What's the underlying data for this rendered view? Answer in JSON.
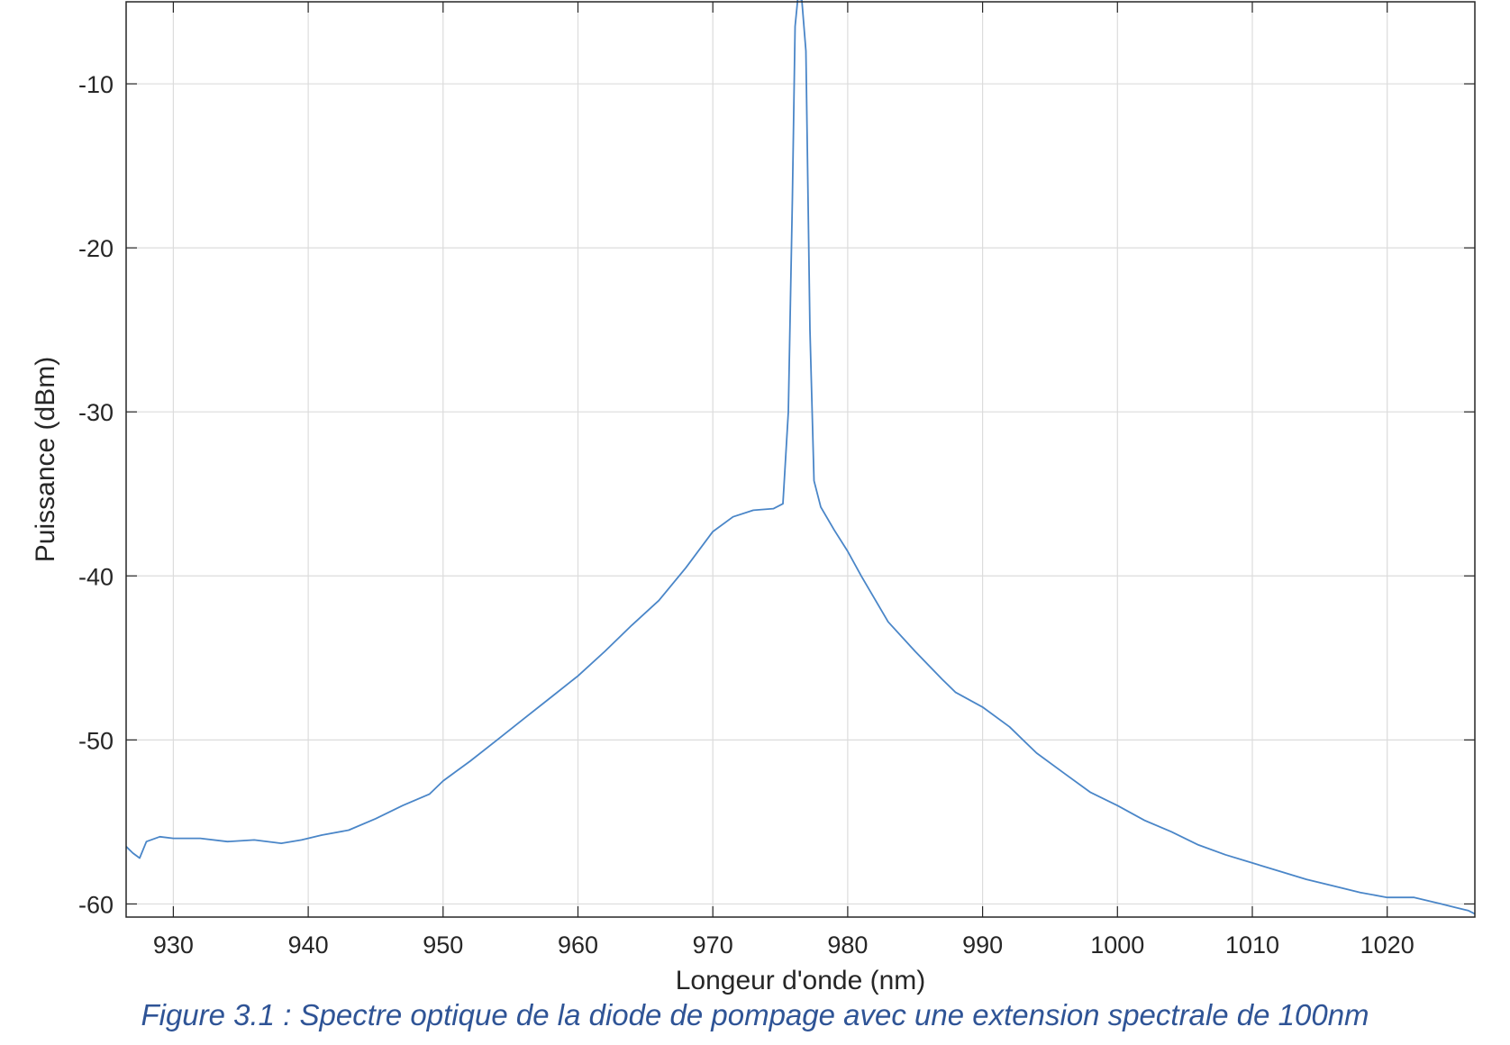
{
  "chart_data": {
    "type": "line",
    "title": "",
    "xlabel": "Longeur d'onde (nm)",
    "ylabel": "Puissance (dBm)",
    "xlim": [
      926.5,
      1026.5
    ],
    "ylim": [
      -60.8,
      -5
    ],
    "grid": true,
    "line_color": "#4a86c8",
    "x_ticks": [
      {
        "value": 930,
        "label": "930"
      },
      {
        "value": 940,
        "label": "940"
      },
      {
        "value": 950,
        "label": "950"
      },
      {
        "value": 960,
        "label": "960"
      },
      {
        "value": 970,
        "label": "970"
      },
      {
        "value": 980,
        "label": "980"
      },
      {
        "value": 990,
        "label": "990"
      },
      {
        "value": 1000,
        "label": "1000"
      },
      {
        "value": 1010,
        "label": "1010"
      },
      {
        "value": 1020,
        "label": "1020"
      }
    ],
    "y_ticks": [
      {
        "value": -10,
        "label": "-10"
      },
      {
        "value": -20,
        "label": "-20"
      },
      {
        "value": -30,
        "label": "-30"
      },
      {
        "value": -40,
        "label": "-40"
      },
      {
        "value": -50,
        "label": "-50"
      },
      {
        "value": -60,
        "label": "-60"
      }
    ],
    "series": [
      {
        "x": [
          926.5,
          927.0,
          927.5,
          928.0,
          929.0,
          930.0,
          932.0,
          934.0,
          936.0,
          938.0,
          939.5,
          941.0,
          943.0,
          945.0,
          947.0,
          949.0,
          950.0,
          952.0,
          954.0,
          956.0,
          958.0,
          960.0,
          962.0,
          964.0,
          966.0,
          968.0,
          970.0,
          971.5,
          973.0,
          974.5,
          975.2,
          975.6,
          975.9,
          976.1,
          976.3,
          976.6,
          976.9,
          977.2,
          977.5,
          978.0,
          979.0,
          980.0,
          981.0,
          983.0,
          985.0,
          987.0,
          988.0,
          990.0,
          992.0,
          994.0,
          996.0,
          998.0,
          1000.0,
          1002.0,
          1004.0,
          1006.0,
          1008.0,
          1010.0,
          1012.0,
          1014.0,
          1016.0,
          1018.0,
          1020.0,
          1022.0,
          1024.0,
          1025.0,
          1026.0,
          1026.5
        ],
        "y": [
          -56.5,
          -56.9,
          -57.2,
          -56.2,
          -55.9,
          -56.0,
          -56.0,
          -56.2,
          -56.1,
          -56.3,
          -56.1,
          -55.8,
          -55.5,
          -54.8,
          -54.0,
          -53.3,
          -52.5,
          -51.3,
          -50.0,
          -48.7,
          -47.4,
          -46.1,
          -44.6,
          -43.0,
          -41.5,
          -39.5,
          -37.3,
          -36.4,
          -36.0,
          -35.9,
          -35.6,
          -30.0,
          -17.0,
          -6.5,
          -4.8,
          -4.9,
          -8.0,
          -25.0,
          -34.2,
          -35.8,
          -37.2,
          -38.5,
          -40.0,
          -42.8,
          -44.6,
          -46.3,
          -47.1,
          -48.0,
          -49.2,
          -50.8,
          -52.0,
          -53.2,
          -54.0,
          -54.9,
          -55.6,
          -56.4,
          -57.0,
          -57.5,
          -58.0,
          -58.5,
          -58.9,
          -59.3,
          -59.6,
          -59.6,
          -60.0,
          -60.2,
          -60.4,
          -60.6
        ]
      }
    ]
  },
  "caption": "Figure 3.1 : Spectre optique de la diode de pompage avec une extension spectrale de 100nm"
}
